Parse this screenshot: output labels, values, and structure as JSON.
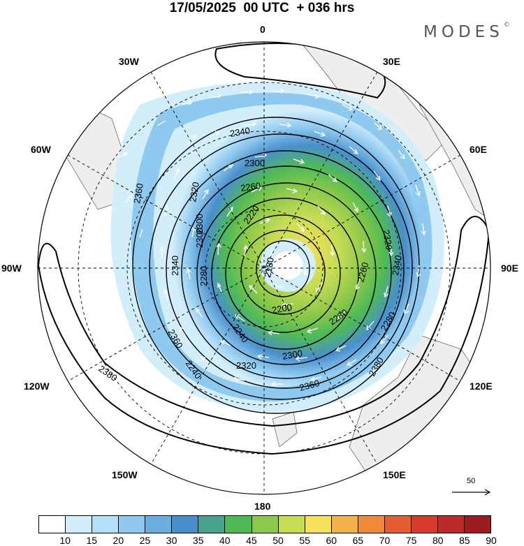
{
  "header": {
    "title": "17/05/2025  00 UTC  + 036 hrs",
    "brand": "MODES",
    "brand_mark": "©"
  },
  "map": {
    "projection": "south-polar-stereographic",
    "longitude_labels": {
      "lon_0": "0",
      "lon_30e": "30E",
      "lon_60e": "60E",
      "lon_90e": "90E",
      "lon_120e": "120E",
      "lon_150e": "150E",
      "lon_180": "180",
      "lon_150w": "150W",
      "lon_120w": "120W",
      "lon_90w": "90W",
      "lon_60w": "60W",
      "lon_30w": "30W"
    },
    "contour_labels": [
      "2340",
      "2300",
      "2260",
      "2220",
      "2180",
      "2200",
      "2240",
      "2280",
      "2320",
      "2360",
      "2380",
      "2260",
      "2280",
      "2300",
      "2320",
      "2340",
      "2360",
      "2300",
      "2320",
      "2360",
      "2380",
      "2340",
      "2300",
      "2280",
      "2240"
    ],
    "contour_levels": [
      2180,
      2200,
      2220,
      2240,
      2260,
      2280,
      2300,
      2320,
      2340,
      2360,
      2380
    ],
    "vector_reference": {
      "label": "50"
    }
  },
  "colorbar": {
    "labels": [
      "10",
      "15",
      "20",
      "25",
      "30",
      "35",
      "40",
      "45",
      "50",
      "55",
      "60",
      "65",
      "70",
      "75",
      "80",
      "85",
      "90"
    ],
    "colors": [
      "#ffffff",
      "#d3eefb",
      "#b3e0f6",
      "#8fc9ef",
      "#6aaedf",
      "#4a8fcc",
      "#47a38d",
      "#4fba55",
      "#8cc84b",
      "#c7dc55",
      "#f5e05c",
      "#f3b24a",
      "#ef8a3b",
      "#e75d33",
      "#d83a2e",
      "#bd2a2c",
      "#9c1c22"
    ],
    "palette": {
      "land": "#eeeeee",
      "contour": "#000000",
      "arrow": "#ffffff",
      "grid": "#000000"
    }
  }
}
